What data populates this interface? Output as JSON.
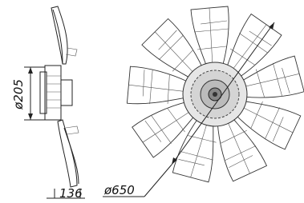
{
  "dimensions": {
    "hub_diameter": "ø205",
    "depth": "136",
    "fan_diameter": "ø650"
  }
}
